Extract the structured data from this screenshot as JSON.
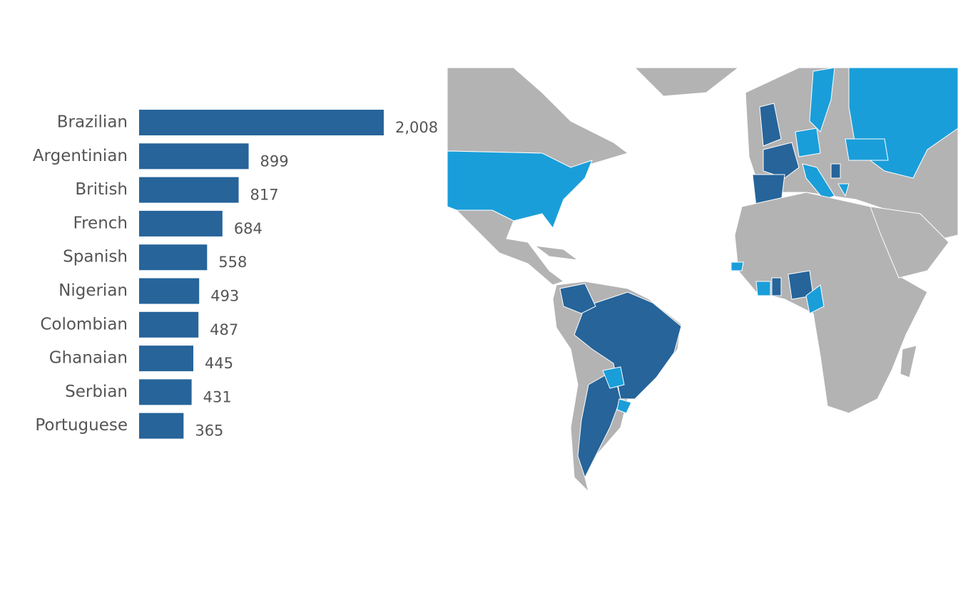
{
  "chart_data": {
    "type": "bar",
    "orientation": "horizontal",
    "categories": [
      "Brazilian",
      "Argentinian",
      "British",
      "French",
      "Spanish",
      "Nigerian",
      "Colombian",
      "Ghanaian",
      "Serbian",
      "Portuguese"
    ],
    "values": [
      2008,
      899,
      817,
      684,
      558,
      493,
      487,
      445,
      431,
      365
    ],
    "value_labels": [
      "2,008",
      "899",
      "817",
      "684",
      "558",
      "493",
      "487",
      "445",
      "431",
      "365"
    ],
    "color": "#26649a"
  }
}
